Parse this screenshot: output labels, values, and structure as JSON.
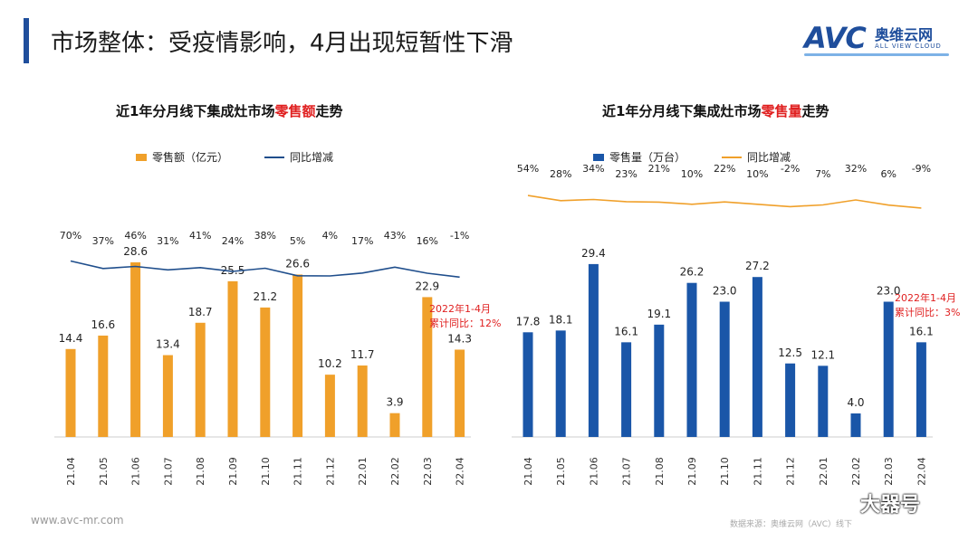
{
  "header": {
    "title": "市场整体：受疫情影响，4月出现短暂性下滑",
    "logo_avc": "AVC",
    "logo_cn": "奥维云网",
    "logo_en": "ALL VIEW CLOUD"
  },
  "charts": [
    {
      "title_prefix": "近1年分月线下集成灶市场",
      "title_highlight": "零售额",
      "title_suffix": "走势",
      "legend_bar": "零售额（亿元）",
      "legend_line": "同比增减",
      "annotation_line1": "2022年1-4月",
      "annotation_line2": "累计同比：12%"
    },
    {
      "title_prefix": "近1年分月线下集成灶市场",
      "title_highlight": "零售量",
      "title_suffix": "走势",
      "legend_bar": "零售量（万台）",
      "legend_line": "同比增减",
      "annotation_line1": "2022年1-4月",
      "annotation_line2": "累计同比：3%"
    }
  ],
  "colors": {
    "bar_left": "#F0A02A",
    "bar_right": "#1A56A8",
    "line_left": "#1F4E8C",
    "line_right": "#F0A02A",
    "annotation": "#E02020",
    "accent": "#1F4E9C"
  },
  "chart_data": [
    {
      "type": "bar",
      "title": "近1年分月线下集成灶市场零售额走势",
      "categories": [
        "21.04",
        "21.05",
        "21.06",
        "21.07",
        "21.08",
        "21.09",
        "21.10",
        "21.11",
        "21.12",
        "22.01",
        "22.02",
        "22.03",
        "22.04"
      ],
      "series": [
        {
          "name": "零售额（亿元）",
          "type": "bar",
          "values": [
            14.4,
            16.6,
            28.6,
            13.4,
            18.7,
            25.5,
            21.2,
            26.6,
            10.2,
            11.7,
            3.9,
            22.9,
            14.3
          ],
          "labels": [
            "14.4",
            "16.6",
            "28.6",
            "13.4",
            "18.7",
            "25.5",
            "21.2",
            "26.6",
            "10.2",
            "11.7",
            "3.9",
            "22.9",
            "14.3"
          ]
        },
        {
          "name": "同比增减",
          "type": "line",
          "values": [
            70,
            37,
            46,
            31,
            41,
            24,
            38,
            5,
            4,
            17,
            43,
            16,
            -1
          ],
          "labels": [
            "70%",
            "37%",
            "46%",
            "31%",
            "41%",
            "24%",
            "38%",
            "5%",
            "4%",
            "17%",
            "43%",
            "16%",
            "-1%"
          ]
        }
      ],
      "annotation": "2022年1-4月 累计同比：12%",
      "legend": "top",
      "grid": false
    },
    {
      "type": "bar",
      "title": "近1年分月线下集成灶市场零售量走势",
      "categories": [
        "21.04",
        "21.05",
        "21.06",
        "21.07",
        "21.08",
        "21.09",
        "21.10",
        "21.11",
        "21.12",
        "22.01",
        "22.02",
        "22.03",
        "22.04"
      ],
      "series": [
        {
          "name": "零售量（万台）",
          "type": "bar",
          "values": [
            17.8,
            18.1,
            29.4,
            16.1,
            19.1,
            26.2,
            23.0,
            27.2,
            12.5,
            12.1,
            4.0,
            23.0,
            16.1
          ],
          "labels": [
            "17.8",
            "18.1",
            "29.4",
            "16.1",
            "19.1",
            "26.2",
            "23.0",
            "27.2",
            "12.5",
            "12.1",
            "4.0",
            "23.0",
            "16.1"
          ]
        },
        {
          "name": "同比增减",
          "type": "line",
          "values": [
            54,
            28,
            34,
            23,
            21,
            10,
            22,
            10,
            -2,
            7,
            32,
            6,
            -9
          ],
          "labels": [
            "54%",
            "28%",
            "34%",
            "23%",
            "21%",
            "10%",
            "22%",
            "10%",
            "-2%",
            "7%",
            "32%",
            "6%",
            "-9%"
          ]
        }
      ],
      "annotation": "2022年1-4月 累计同比：3%",
      "legend": "top",
      "grid": false
    }
  ],
  "footer": {
    "url": "www.avc-mr.com",
    "source": "数据来源：奥维云网（AVC）线下",
    "watermark": "大器号"
  }
}
